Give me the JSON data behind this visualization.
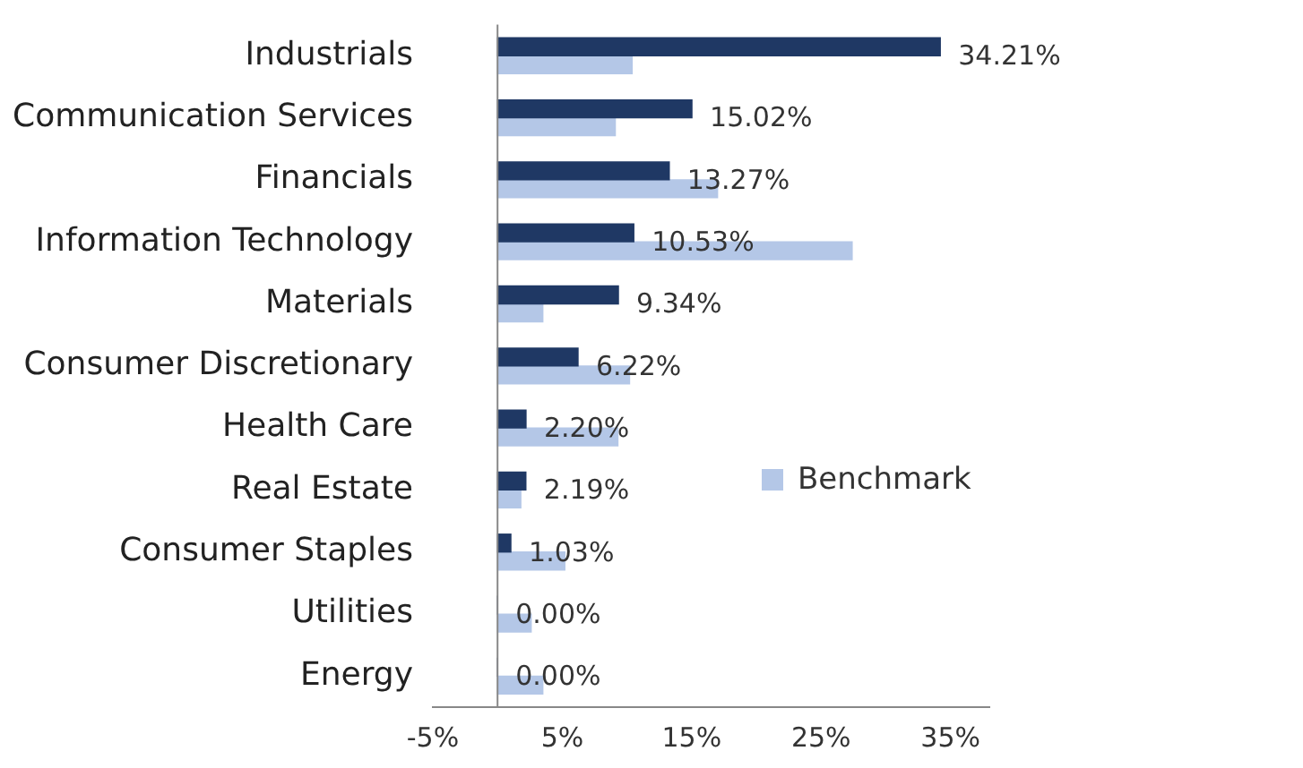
{
  "chart_data": {
    "type": "bar",
    "orientation": "horizontal",
    "categories": [
      "Industrials",
      "Communication Services",
      "Financials",
      "Information Technology",
      "Materials",
      "Consumer Discretionary",
      "Health Care",
      "Real Estate",
      "Consumer Staples",
      "Utilities",
      "Energy"
    ],
    "series": [
      {
        "color": "#1f3864",
        "values": [
          34.21,
          15.02,
          13.27,
          10.53,
          9.34,
          6.22,
          2.2,
          2.19,
          1.03,
          0,
          0
        ],
        "value_labels": [
          "34.21%",
          "15.02%",
          "13.27%",
          "10.53%",
          "9.34%",
          "6.22%",
          "2.20%",
          "2.19%",
          "1.03%",
          "0.00%",
          "0.00%"
        ]
      },
      {
        "name": "Benchmark",
        "color": "#b4c7e7",
        "values": [
          10.4,
          9.1,
          17,
          27.4,
          3.5,
          10.2,
          9.3,
          1.8,
          5.2,
          2.6,
          3.5
        ]
      }
    ],
    "xlim": [
      -5,
      38
    ],
    "xticks": [
      {
        "value": -5,
        "label": "-5%"
      },
      {
        "value": 5,
        "label": "5%"
      },
      {
        "value": 15,
        "label": "15%"
      },
      {
        "value": 25,
        "label": "25%"
      },
      {
        "value": 35,
        "label": "35%"
      }
    ],
    "grid": false,
    "legend": "right"
  }
}
